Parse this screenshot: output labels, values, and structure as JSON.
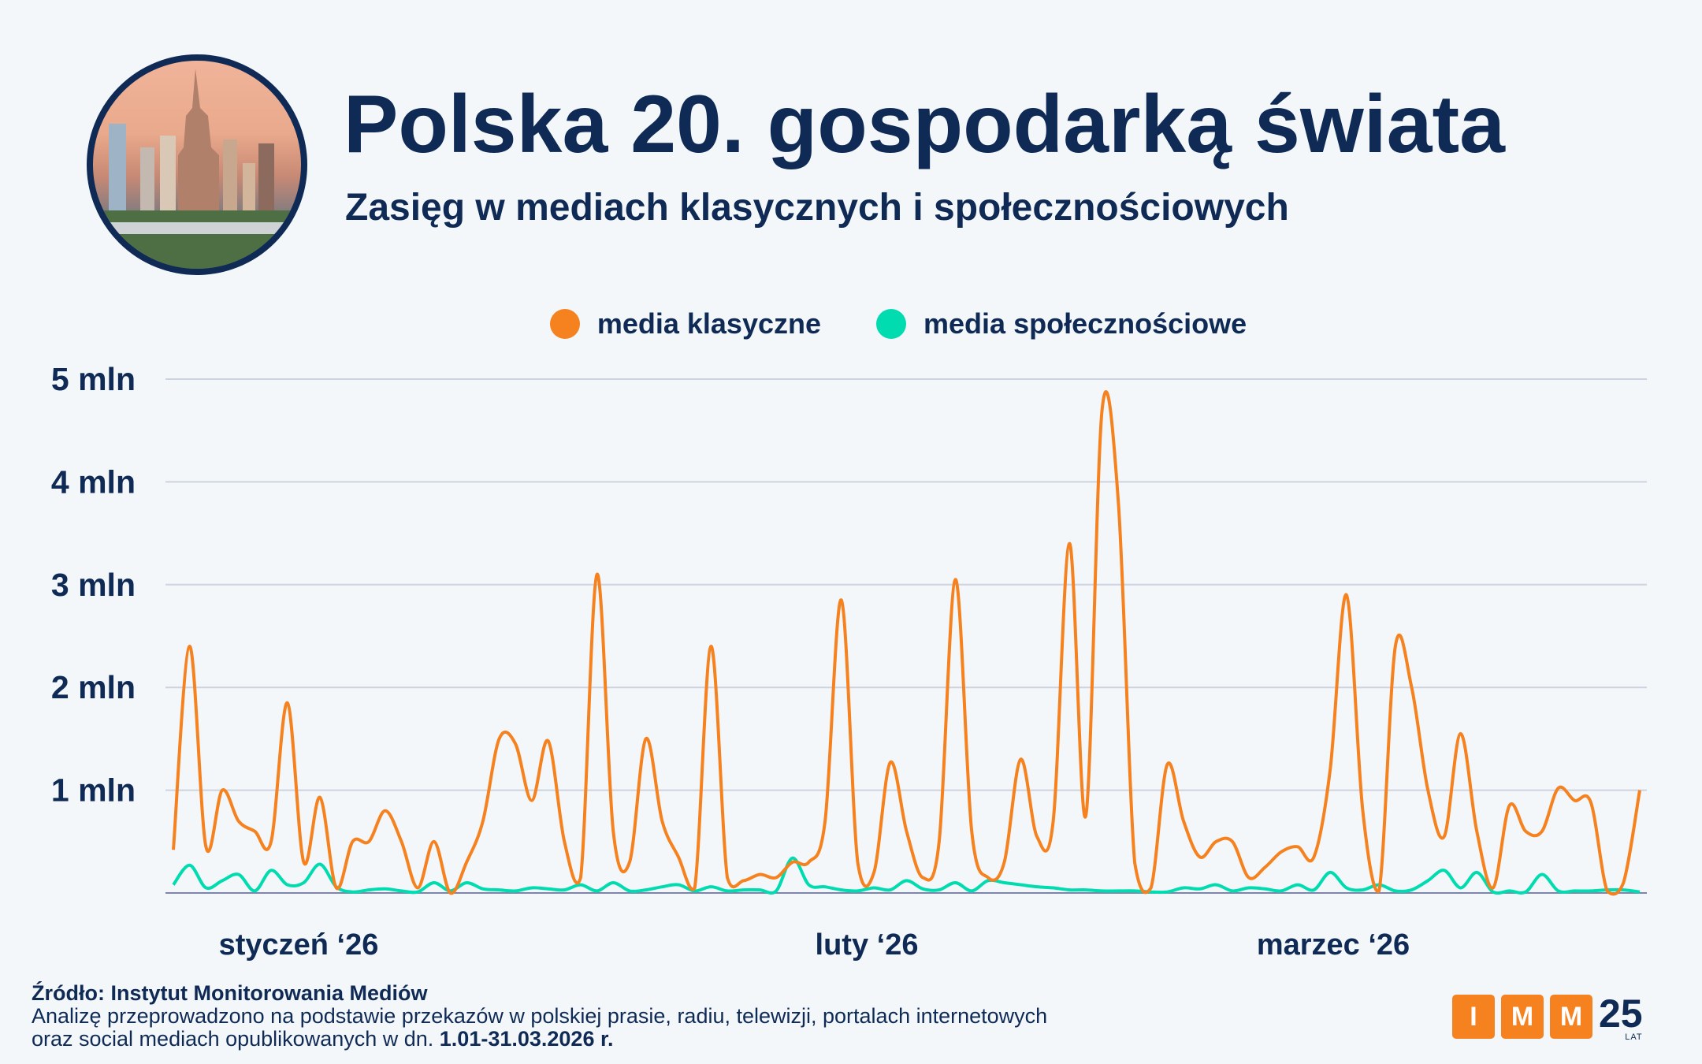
{
  "header": {
    "title": "Polska 20. gospodarką świata",
    "subtitle": "Zasięg w mediach klasycznych i społecznościowych",
    "photo": "Warsaw skyline with Palace of Culture and Science"
  },
  "colors": {
    "background": "#f3f7fa",
    "navy": "#0f2a55",
    "classic": "#f5821f",
    "social": "#00dcb0"
  },
  "chart_data": {
    "type": "line",
    "title": "",
    "xlabel": "",
    "ylabel": "",
    "x_range": [
      "2026-01-01",
      "2026-03-31"
    ],
    "x_tick_labels": [
      "styczeń ‘26",
      "luty ‘26",
      "marzec ‘26"
    ],
    "ylim": [
      0,
      5
    ],
    "y_unit": "mln",
    "y_ticks": [
      1,
      2,
      3,
      4,
      5
    ],
    "y_tick_labels": [
      "1 mln",
      "2 mln",
      "3 mln",
      "4 mln",
      "5 mln"
    ],
    "grid": true,
    "legend": "top-center",
    "series": [
      {
        "name": "media klasyczne",
        "color": "#f5821f",
        "values": [
          0.42,
          2.4,
          0.45,
          1.0,
          0.7,
          0.6,
          0.5,
          1.85,
          0.3,
          0.93,
          0.05,
          0.5,
          0.5,
          0.8,
          0.5,
          0.05,
          0.5,
          0,
          0.3,
          0.7,
          1.5,
          1.45,
          0.9,
          1.48,
          0.5,
          0.15,
          3.1,
          0.6,
          0.3,
          1.5,
          0.7,
          0.35,
          0.05,
          2.4,
          0.15,
          0.12,
          0.18,
          0.15,
          0.3,
          0.3,
          0.7,
          2.85,
          0.3,
          0.2,
          1.27,
          0.6,
          0.15,
          0.5,
          3.05,
          0.6,
          0.15,
          0.3,
          1.3,
          0.55,
          0.7,
          3.4,
          0.75,
          4.7,
          3.8,
          0.3,
          0.05,
          1.25,
          0.7,
          0.35,
          0.5,
          0.5,
          0.15,
          0.25,
          0.4,
          0.45,
          0.35,
          1.2,
          2.9,
          0.8,
          0.02,
          2.4,
          2.0,
          1.0,
          0.55,
          1.55,
          0.6,
          0.05,
          0.85,
          0.6,
          0.6,
          1.02,
          0.9,
          0.88,
          0.02,
          0.1,
          1.0
        ]
      },
      {
        "name": "media społecznościowe",
        "color": "#00dcb0",
        "values": [
          0.08,
          0.27,
          0.05,
          0.12,
          0.18,
          0.02,
          0.22,
          0.08,
          0.1,
          0.28,
          0.06,
          0.01,
          0.03,
          0.04,
          0.02,
          0.01,
          0.1,
          0.02,
          0.1,
          0.04,
          0.03,
          0.02,
          0.05,
          0.04,
          0.03,
          0.08,
          0.02,
          0.1,
          0.02,
          0.03,
          0.06,
          0.08,
          0.02,
          0.06,
          0.02,
          0.03,
          0.03,
          0.02,
          0.34,
          0.08,
          0.06,
          0.03,
          0.02,
          0.05,
          0.03,
          0.12,
          0.04,
          0.03,
          0.1,
          0.02,
          0.12,
          0.1,
          0.08,
          0.06,
          0.05,
          0.03,
          0.03,
          0.02,
          0.02,
          0.02,
          0.01,
          0.01,
          0.05,
          0.04,
          0.08,
          0.02,
          0.05,
          0.04,
          0.02,
          0.08,
          0.03,
          0.2,
          0.05,
          0.03,
          0.08,
          0.02,
          0.03,
          0.12,
          0.22,
          0.05,
          0.2,
          0.01,
          0.02,
          0.01,
          0.18,
          0.02,
          0.02,
          0.02,
          0.03,
          0.03,
          0.01
        ]
      }
    ]
  },
  "footer": {
    "source": "Źródło: Instytut Monitorowania Mediów",
    "note_line1": "Analizę przeprowadzono na podstawie przekazów w polskiej prasie, radiu, telewizji, portalach internetowych",
    "note_line2_prefix": "oraz social mediach opublikowanych w dn. ",
    "note_line2_dates": "1.01-31.03.2026 r."
  },
  "logo": {
    "letters": [
      "I",
      "M",
      "M"
    ],
    "number": "25",
    "suffix": "LAT"
  }
}
